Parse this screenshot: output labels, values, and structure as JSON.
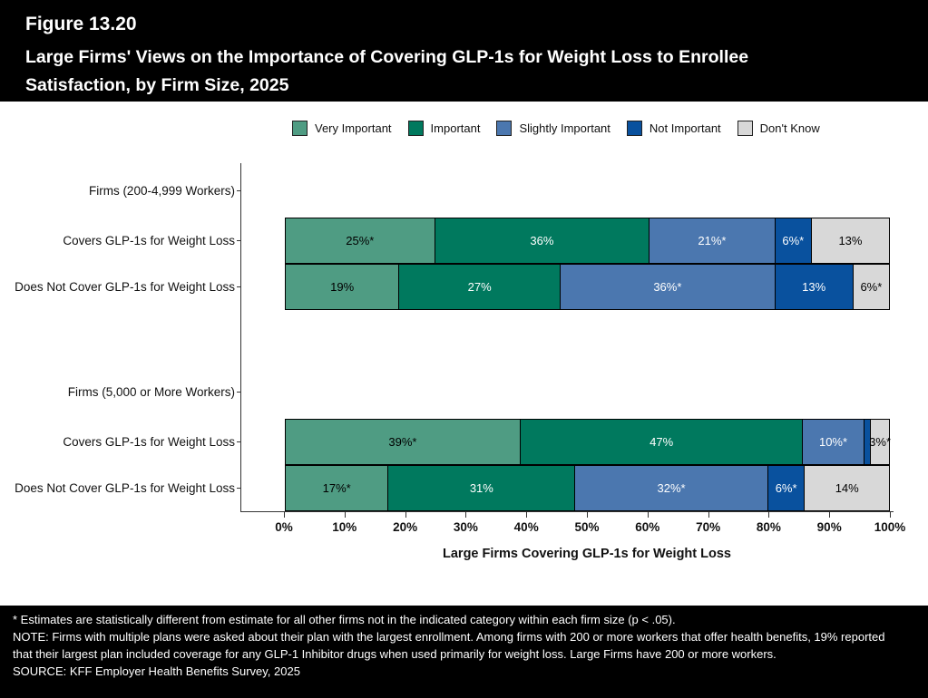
{
  "header": {
    "figure_label": "Figure 13.20",
    "title": "Large Firms' Views on the Importance of Covering GLP-1s for Weight Loss to Enrollee Satisfaction, by Firm Size, 2025"
  },
  "chart_data": {
    "type": "bar",
    "orientation": "horizontal",
    "stacked": true,
    "legend_position": "top",
    "xlabel": "Large Firms Covering GLP-1s for Weight Loss",
    "xlim": [
      0,
      100
    ],
    "x_ticks": [
      "0%",
      "10%",
      "20%",
      "30%",
      "40%",
      "50%",
      "60%",
      "70%",
      "80%",
      "90%",
      "100%"
    ],
    "series": [
      {
        "name": "Very Important",
        "color": "#4F9C83",
        "label_color": "#000000"
      },
      {
        "name": "Important",
        "color": "#00795E",
        "label_color": "#ffffff"
      },
      {
        "name": "Slightly Important",
        "color": "#4B77AF",
        "label_color": "#ffffff"
      },
      {
        "name": "Not Important",
        "color": "#09519E",
        "label_color": "#ffffff"
      },
      {
        "name": "Don't Know",
        "color": "#D8D8D8",
        "label_color": "#000000"
      }
    ],
    "rows": [
      {
        "type": "header",
        "label": "Firms (200-4,999 Workers)"
      },
      {
        "type": "bar",
        "label": "Covers GLP-1s for Weight Loss",
        "values": [
          25,
          36,
          21,
          6,
          13
        ],
        "labels": [
          "25%*",
          "36%",
          "21%*",
          "6%*",
          "13%"
        ]
      },
      {
        "type": "bar",
        "label": "Does Not Cover GLP-1s for Weight Loss",
        "values": [
          19,
          27,
          36,
          13,
          6
        ],
        "labels": [
          "19%",
          "27%",
          "36%*",
          "13%",
          "6%*"
        ]
      },
      {
        "type": "spacer",
        "label": ""
      },
      {
        "type": "header",
        "label": "Firms (5,000 or More Workers)"
      },
      {
        "type": "bar",
        "label": "Covers GLP-1s for Weight Loss",
        "values": [
          39,
          47,
          10,
          1,
          3
        ],
        "labels": [
          "39%*",
          "47%",
          "10%*",
          "",
          "3%*"
        ]
      },
      {
        "type": "bar",
        "label": "Does Not Cover GLP-1s for Weight Loss",
        "values": [
          17,
          31,
          32,
          6,
          14
        ],
        "labels": [
          "17%*",
          "31%",
          "32%*",
          "6%*",
          "14%"
        ]
      }
    ]
  },
  "footer": {
    "footnote": "* Estimates are statistically different from estimate for all other firms not in the indicated category within each firm size (p < .05).",
    "note": "NOTE: Firms with multiple plans were asked about their plan with the largest enrollment.  Among firms with 200 or more workers that offer health benefits, 19% reported that their largest plan included coverage for any GLP-1 Inhibitor drugs when used primarily for weight loss. Large Firms have 200 or more workers.",
    "source": "SOURCE: KFF Employer Health Benefits Survey, 2025"
  }
}
